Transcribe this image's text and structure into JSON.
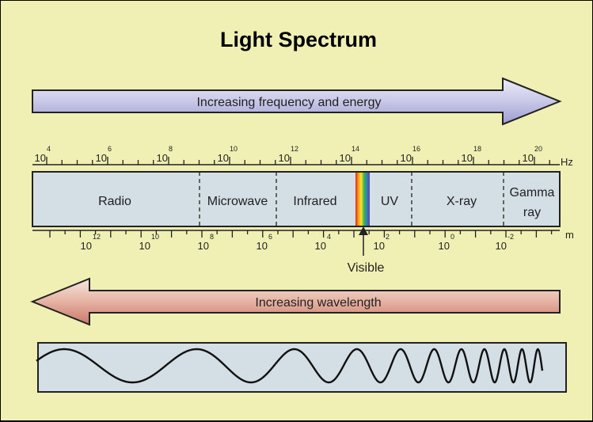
{
  "title": "Light Spectrum",
  "frequency_arrow_label": "Increasing frequency and energy",
  "wavelength_arrow_label": "Increasing wavelength",
  "frequency_unit": "Hz",
  "wavelength_unit": "m",
  "regions": [
    "Radio",
    "Microwave",
    "Infrared",
    "UV",
    "X-ray"
  ],
  "gamma_label": [
    "Gamma",
    "ray"
  ],
  "visible_label": "Visible",
  "frequency_ticks": [
    {
      "base": "10",
      "exp": "4"
    },
    {
      "base": "10",
      "exp": "6"
    },
    {
      "base": "10",
      "exp": "8"
    },
    {
      "base": "10",
      "exp": "10"
    },
    {
      "base": "10",
      "exp": "12"
    },
    {
      "base": "10",
      "exp": "14"
    },
    {
      "base": "10",
      "exp": "16"
    },
    {
      "base": "10",
      "exp": "18"
    },
    {
      "base": "10",
      "exp": "20"
    }
  ],
  "wavelength_ticks": [
    {
      "base": "10",
      "exp": "12"
    },
    {
      "base": "10",
      "exp": "10"
    },
    {
      "base": "10",
      "exp": "8"
    },
    {
      "base": "10",
      "exp": "6"
    },
    {
      "base": "10",
      "exp": "4"
    },
    {
      "base": "10",
      "exp": "2"
    },
    {
      "base": "10",
      "exp": "0"
    },
    {
      "base": "10",
      "exp": "-2"
    }
  ],
  "colors": {
    "background": "#f0f0b4",
    "spectrum_bar": "#d3dee5",
    "frequency_arrow_light": "#ebebf8",
    "frequency_arrow_dark": "#9d9ccf",
    "wavelength_arrow_light": "#f6e7e0",
    "wavelength_arrow_dark": "#c87868",
    "wave_box": "#d3dee5"
  }
}
